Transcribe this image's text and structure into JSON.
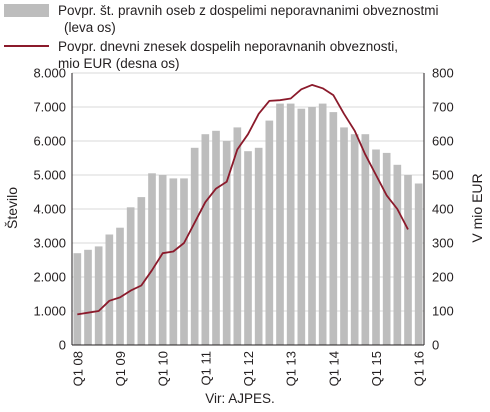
{
  "chart_data": {
    "type": "bar+line",
    "legend": [
      {
        "label_line1": "Povpr. št. pravnih oseb z dospelimi neporavnanimi obveznostmi",
        "label_line2": "(leva os)",
        "kind": "bar",
        "color": "#bdbdbd"
      },
      {
        "label_line1": "Povpr. dnevni znesek dospelih neporavnanih obveznosti,",
        "label_line2": "mio EUR (desna os)",
        "kind": "line",
        "color": "#8b1a2b"
      }
    ],
    "ylabel_left": "Število",
    "ylabel_right": "V mio EUR",
    "yticks_left": [
      "0",
      "1.000",
      "2.000",
      "3.000",
      "4.000",
      "5.000",
      "6.000",
      "7.000",
      "8.000"
    ],
    "yticks_right": [
      "0",
      "100",
      "200",
      "300",
      "400",
      "500",
      "600",
      "700",
      "800"
    ],
    "ylim_left": [
      0,
      8000
    ],
    "ylim_right": [
      0,
      800
    ],
    "xtick_labels": [
      "Q1 08",
      "Q1 09",
      "Q1 10",
      "Q1 11",
      "Q1 12",
      "Q1 13",
      "Q1 14",
      "Q1 15",
      "Q1 16"
    ],
    "periods": [
      "Q1 08",
      "Q2 08",
      "Q3 08",
      "Q4 08",
      "Q1 09",
      "Q2 09",
      "Q3 09",
      "Q4 09",
      "Q1 10",
      "Q2 10",
      "Q3 10",
      "Q4 10",
      "Q1 11",
      "Q2 11",
      "Q3 11",
      "Q4 11",
      "Q1 12",
      "Q2 12",
      "Q3 12",
      "Q4 12",
      "Q1 13",
      "Q2 13",
      "Q3 13",
      "Q4 13",
      "Q1 14",
      "Q2 14",
      "Q3 14",
      "Q4 14",
      "Q1 15",
      "Q2 15",
      "Q3 15",
      "Q4 15",
      "Q1 16"
    ],
    "bars_left": [
      2700,
      2800,
      2900,
      3250,
      3450,
      4050,
      4350,
      5050,
      5000,
      4900,
      4900,
      5800,
      6200,
      6300,
      6000,
      6400,
      5700,
      5800,
      6600,
      7100,
      7100,
      6950,
      7000,
      7100,
      6850,
      6400,
      6200,
      6200,
      5750,
      5650,
      5300,
      5000,
      4750
    ],
    "line_right": [
      90,
      95,
      100,
      130,
      140,
      160,
      175,
      220,
      270,
      275,
      300,
      360,
      420,
      460,
      480,
      575,
      620,
      680,
      718,
      720,
      725,
      752,
      765,
      755,
      735,
      680,
      630,
      560,
      500,
      440,
      400,
      340,
      null
    ],
    "grid": true,
    "source": "Vir: AJPES."
  }
}
